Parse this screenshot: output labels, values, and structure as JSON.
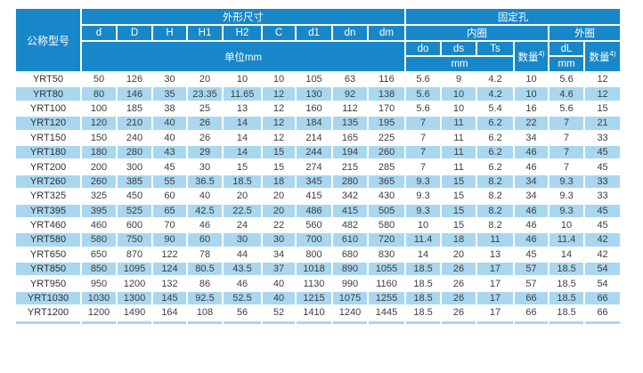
{
  "colors": {
    "header_blue": "#1787c9",
    "stripe_blue": "#a9d7ef",
    "header_text": "#ffffff",
    "body_text": "#3d3d3d",
    "grid_line": "#ffffff"
  },
  "table": {
    "header": {
      "model_col": "公称型号",
      "dims_group": "外形尺寸",
      "dims_cols": [
        "d",
        "D",
        "H",
        "H1",
        "H2",
        "C",
        "d1",
        "dn",
        "dm"
      ],
      "dims_unit": "单位mm",
      "holes_group": "固定孔",
      "inner_group": "内圈",
      "outer_group": "外圈",
      "inner_cols": [
        "do",
        "ds",
        "Ts"
      ],
      "inner_unit": "mm",
      "qty_label": "数量",
      "qty_sup": "4)",
      "outer_dl": "dL",
      "outer_unit": "mm"
    },
    "rows": [
      [
        "YRT50",
        "50",
        "126",
        "30",
        "20",
        "10",
        "10",
        "105",
        "63",
        "116",
        "5.6",
        "9",
        "4.2",
        "10",
        "5.6",
        "12"
      ],
      [
        "YRT80",
        "80",
        "146",
        "35",
        "23.35",
        "11.65",
        "12",
        "130",
        "92",
        "138",
        "5.6",
        "10",
        "4.2",
        "10",
        "4.6",
        "12"
      ],
      [
        "YRT100",
        "100",
        "185",
        "38",
        "25",
        "13",
        "12",
        "160",
        "112",
        "170",
        "5.6",
        "10",
        "5.4",
        "16",
        "5.6",
        "15"
      ],
      [
        "YRT120",
        "120",
        "210",
        "40",
        "26",
        "14",
        "12",
        "184",
        "135",
        "195",
        "7",
        "11",
        "6.2",
        "22",
        "7",
        "21"
      ],
      [
        "YRT150",
        "150",
        "240",
        "40",
        "26",
        "14",
        "12",
        "214",
        "165",
        "225",
        "7",
        "11",
        "6.2",
        "34",
        "7",
        "33"
      ],
      [
        "YRT180",
        "180",
        "280",
        "43",
        "29",
        "14",
        "15",
        "244",
        "194",
        "260",
        "7",
        "11",
        "6.2",
        "46",
        "7",
        "45"
      ],
      [
        "YRT200",
        "200",
        "300",
        "45",
        "30",
        "15",
        "15",
        "274",
        "215",
        "285",
        "7",
        "11",
        "6.2",
        "46",
        "7",
        "45"
      ],
      [
        "YRT260",
        "260",
        "385",
        "55",
        "36.5",
        "18.5",
        "18",
        "345",
        "280",
        "365",
        "9.3",
        "15",
        "8.2",
        "34",
        "9.3",
        "33"
      ],
      [
        "YRT325",
        "325",
        "450",
        "60",
        "40",
        "20",
        "20",
        "415",
        "342",
        "430",
        "9.3",
        "15",
        "8.2",
        "34",
        "9.3",
        "33"
      ],
      [
        "YRT395",
        "395",
        "525",
        "65",
        "42.5",
        "22.5",
        "20",
        "486",
        "415",
        "505",
        "9.3",
        "15",
        "8.2",
        "46",
        "9.3",
        "45"
      ],
      [
        "YRT460",
        "460",
        "600",
        "70",
        "46",
        "24",
        "22",
        "560",
        "482",
        "580",
        "10",
        "15",
        "8.2",
        "46",
        "10",
        "45"
      ],
      [
        "YRT580",
        "580",
        "750",
        "90",
        "60",
        "30",
        "30",
        "700",
        "610",
        "720",
        "11.4",
        "18",
        "11",
        "46",
        "11.4",
        "42"
      ],
      [
        "YRT650",
        "650",
        "870",
        "122",
        "78",
        "44",
        "34",
        "800",
        "680",
        "830",
        "14",
        "20",
        "13",
        "45",
        "14",
        "42"
      ],
      [
        "YRT850",
        "850",
        "1095",
        "124",
        "80.5",
        "43.5",
        "37",
        "1018",
        "890",
        "1055",
        "18.5",
        "26",
        "17",
        "57",
        "18.5",
        "54"
      ],
      [
        "YRT950",
        "950",
        "1200",
        "132",
        "86",
        "46",
        "40",
        "1130",
        "990",
        "1160",
        "18.5",
        "26",
        "17",
        "57",
        "18.5",
        "54"
      ],
      [
        "YRT1030",
        "1030",
        "1300",
        "145",
        "92.5",
        "52.5",
        "40",
        "1215",
        "1075",
        "1255",
        "18.5",
        "26",
        "17",
        "66",
        "18.5",
        "66"
      ],
      [
        "YRT1200",
        "1200",
        "1490",
        "164",
        "108",
        "56",
        "52",
        "1410",
        "1240",
        "1445",
        "18.5",
        "26",
        "17",
        "66",
        "18.5",
        "66"
      ]
    ]
  }
}
